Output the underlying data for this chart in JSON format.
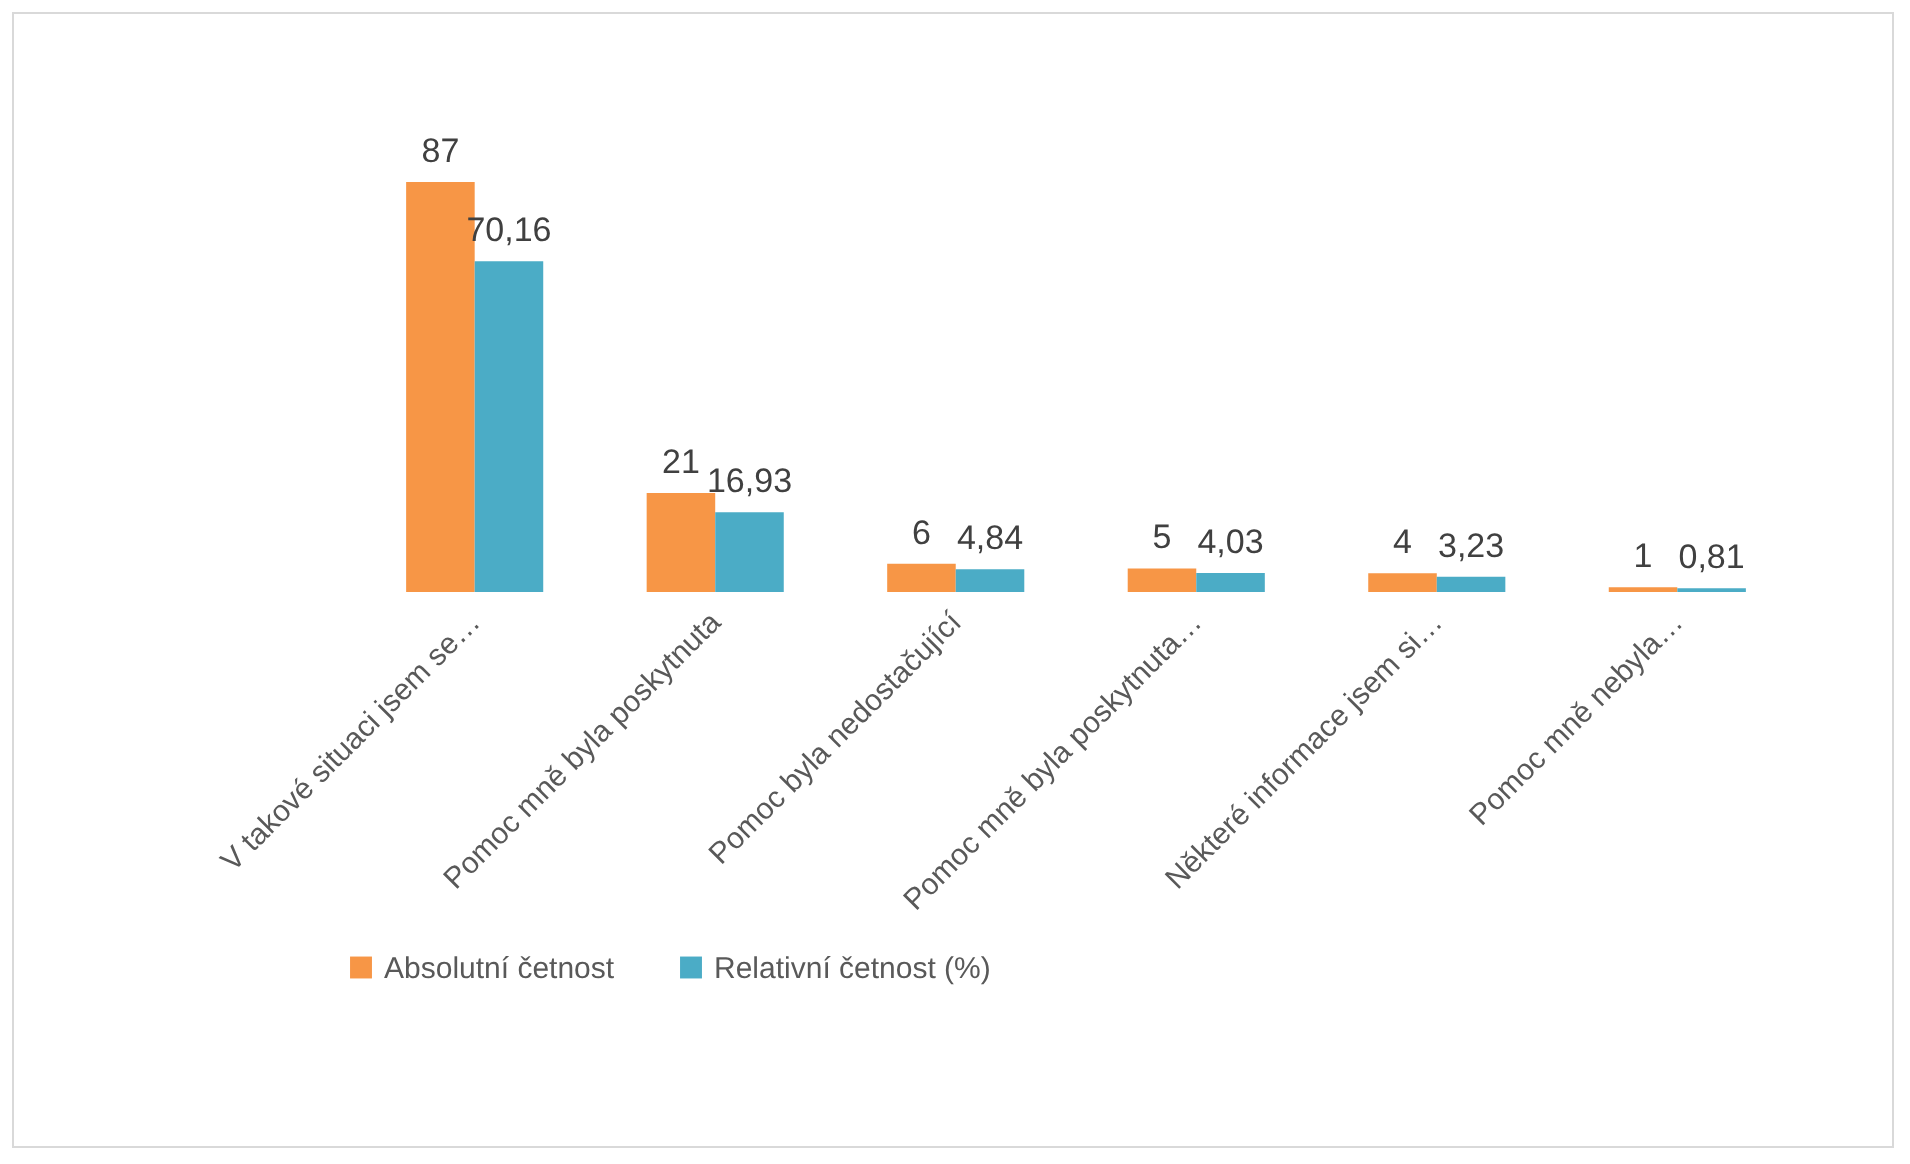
{
  "chart_data": {
    "type": "bar",
    "categories": [
      "V takové situaci jsem se…",
      "Pomoc mně byla poskytnuta",
      "Pomoc byla nedostačující",
      "Pomoc mně byla poskytnuta…",
      "Některé informace jsem si…",
      "Pomoc mně nebyla…"
    ],
    "series": [
      {
        "name": "Absolutní četnost",
        "color": "#f79646",
        "values": [
          87,
          21,
          6,
          5,
          4,
          1
        ],
        "value_labels": [
          "87",
          "21",
          "6",
          "5",
          "4",
          "1"
        ]
      },
      {
        "name": "Relativní četnost (%)",
        "color": "#4bacc6",
        "values": [
          70.16,
          16.93,
          4.84,
          4.03,
          3.23,
          0.81
        ],
        "value_labels": [
          "70,16",
          "16,93",
          "4,84",
          "4,03",
          "3,23",
          "0,81"
        ]
      }
    ],
    "legend": "bottom"
  }
}
